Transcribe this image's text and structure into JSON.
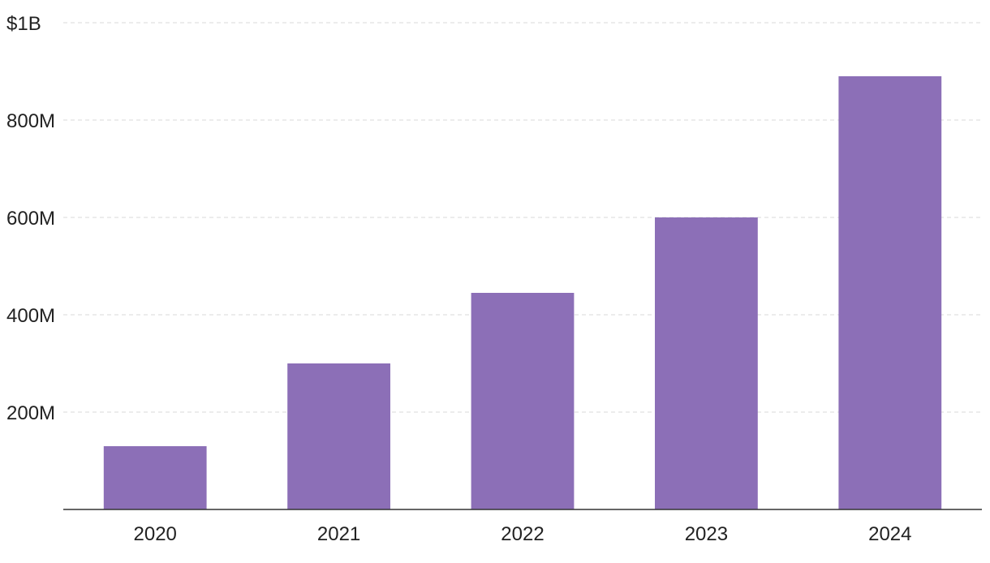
{
  "chart_data": {
    "type": "bar",
    "categories": [
      "2020",
      "2021",
      "2022",
      "2023",
      "2024"
    ],
    "values": [
      130000000,
      300000000,
      445000000,
      600000000,
      890000000
    ],
    "title": "",
    "xlabel": "",
    "ylabel": "",
    "ylim": [
      0,
      1000000000
    ],
    "yticks": [
      {
        "value": 200000000,
        "label": "200M"
      },
      {
        "value": 400000000,
        "label": "400M"
      },
      {
        "value": 600000000,
        "label": "600M"
      },
      {
        "value": 800000000,
        "label": "800M"
      },
      {
        "value": 1000000000,
        "label": "$1B"
      }
    ],
    "grid": true,
    "legend": "none",
    "bar_color": "#8c6fb7",
    "grid_color": "#d9d9d9",
    "axis_color": "#333333"
  }
}
